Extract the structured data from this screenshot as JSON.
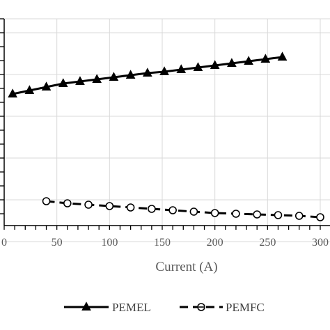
{
  "chart_data": {
    "type": "line",
    "title": "",
    "xlabel": "Current (A)",
    "ylabel": "",
    "xlim": [
      0,
      300
    ],
    "x_ticks": [
      0,
      50,
      100,
      150,
      200,
      250,
      300
    ],
    "x_tick_labels": [
      "0",
      "50",
      "100",
      "150",
      "200",
      "250",
      "300"
    ],
    "grid": true,
    "legend_position": "bottom",
    "series": [
      {
        "name": "PEMEL",
        "style": "solid",
        "marker": "filled-triangle",
        "color": "#000000",
        "x": [
          8,
          24,
          40,
          56,
          72,
          88,
          104,
          120,
          136,
          152,
          168,
          184,
          200,
          216,
          232,
          248,
          264
        ],
        "y": [
          1.66,
          1.685,
          1.71,
          1.735,
          1.75,
          1.765,
          1.78,
          1.795,
          1.81,
          1.82,
          1.835,
          1.85,
          1.865,
          1.88,
          1.895,
          1.91,
          1.925
        ]
      },
      {
        "name": "PEMFC",
        "style": "dashed",
        "marker": "open-circle",
        "color": "#000000",
        "x": [
          40,
          60,
          80,
          100,
          120,
          140,
          160,
          180,
          200,
          220,
          240,
          260,
          280,
          300
        ],
        "y": [
          0.89,
          0.875,
          0.865,
          0.855,
          0.845,
          0.835,
          0.825,
          0.815,
          0.805,
          0.8,
          0.795,
          0.79,
          0.785,
          0.775
        ]
      }
    ]
  }
}
